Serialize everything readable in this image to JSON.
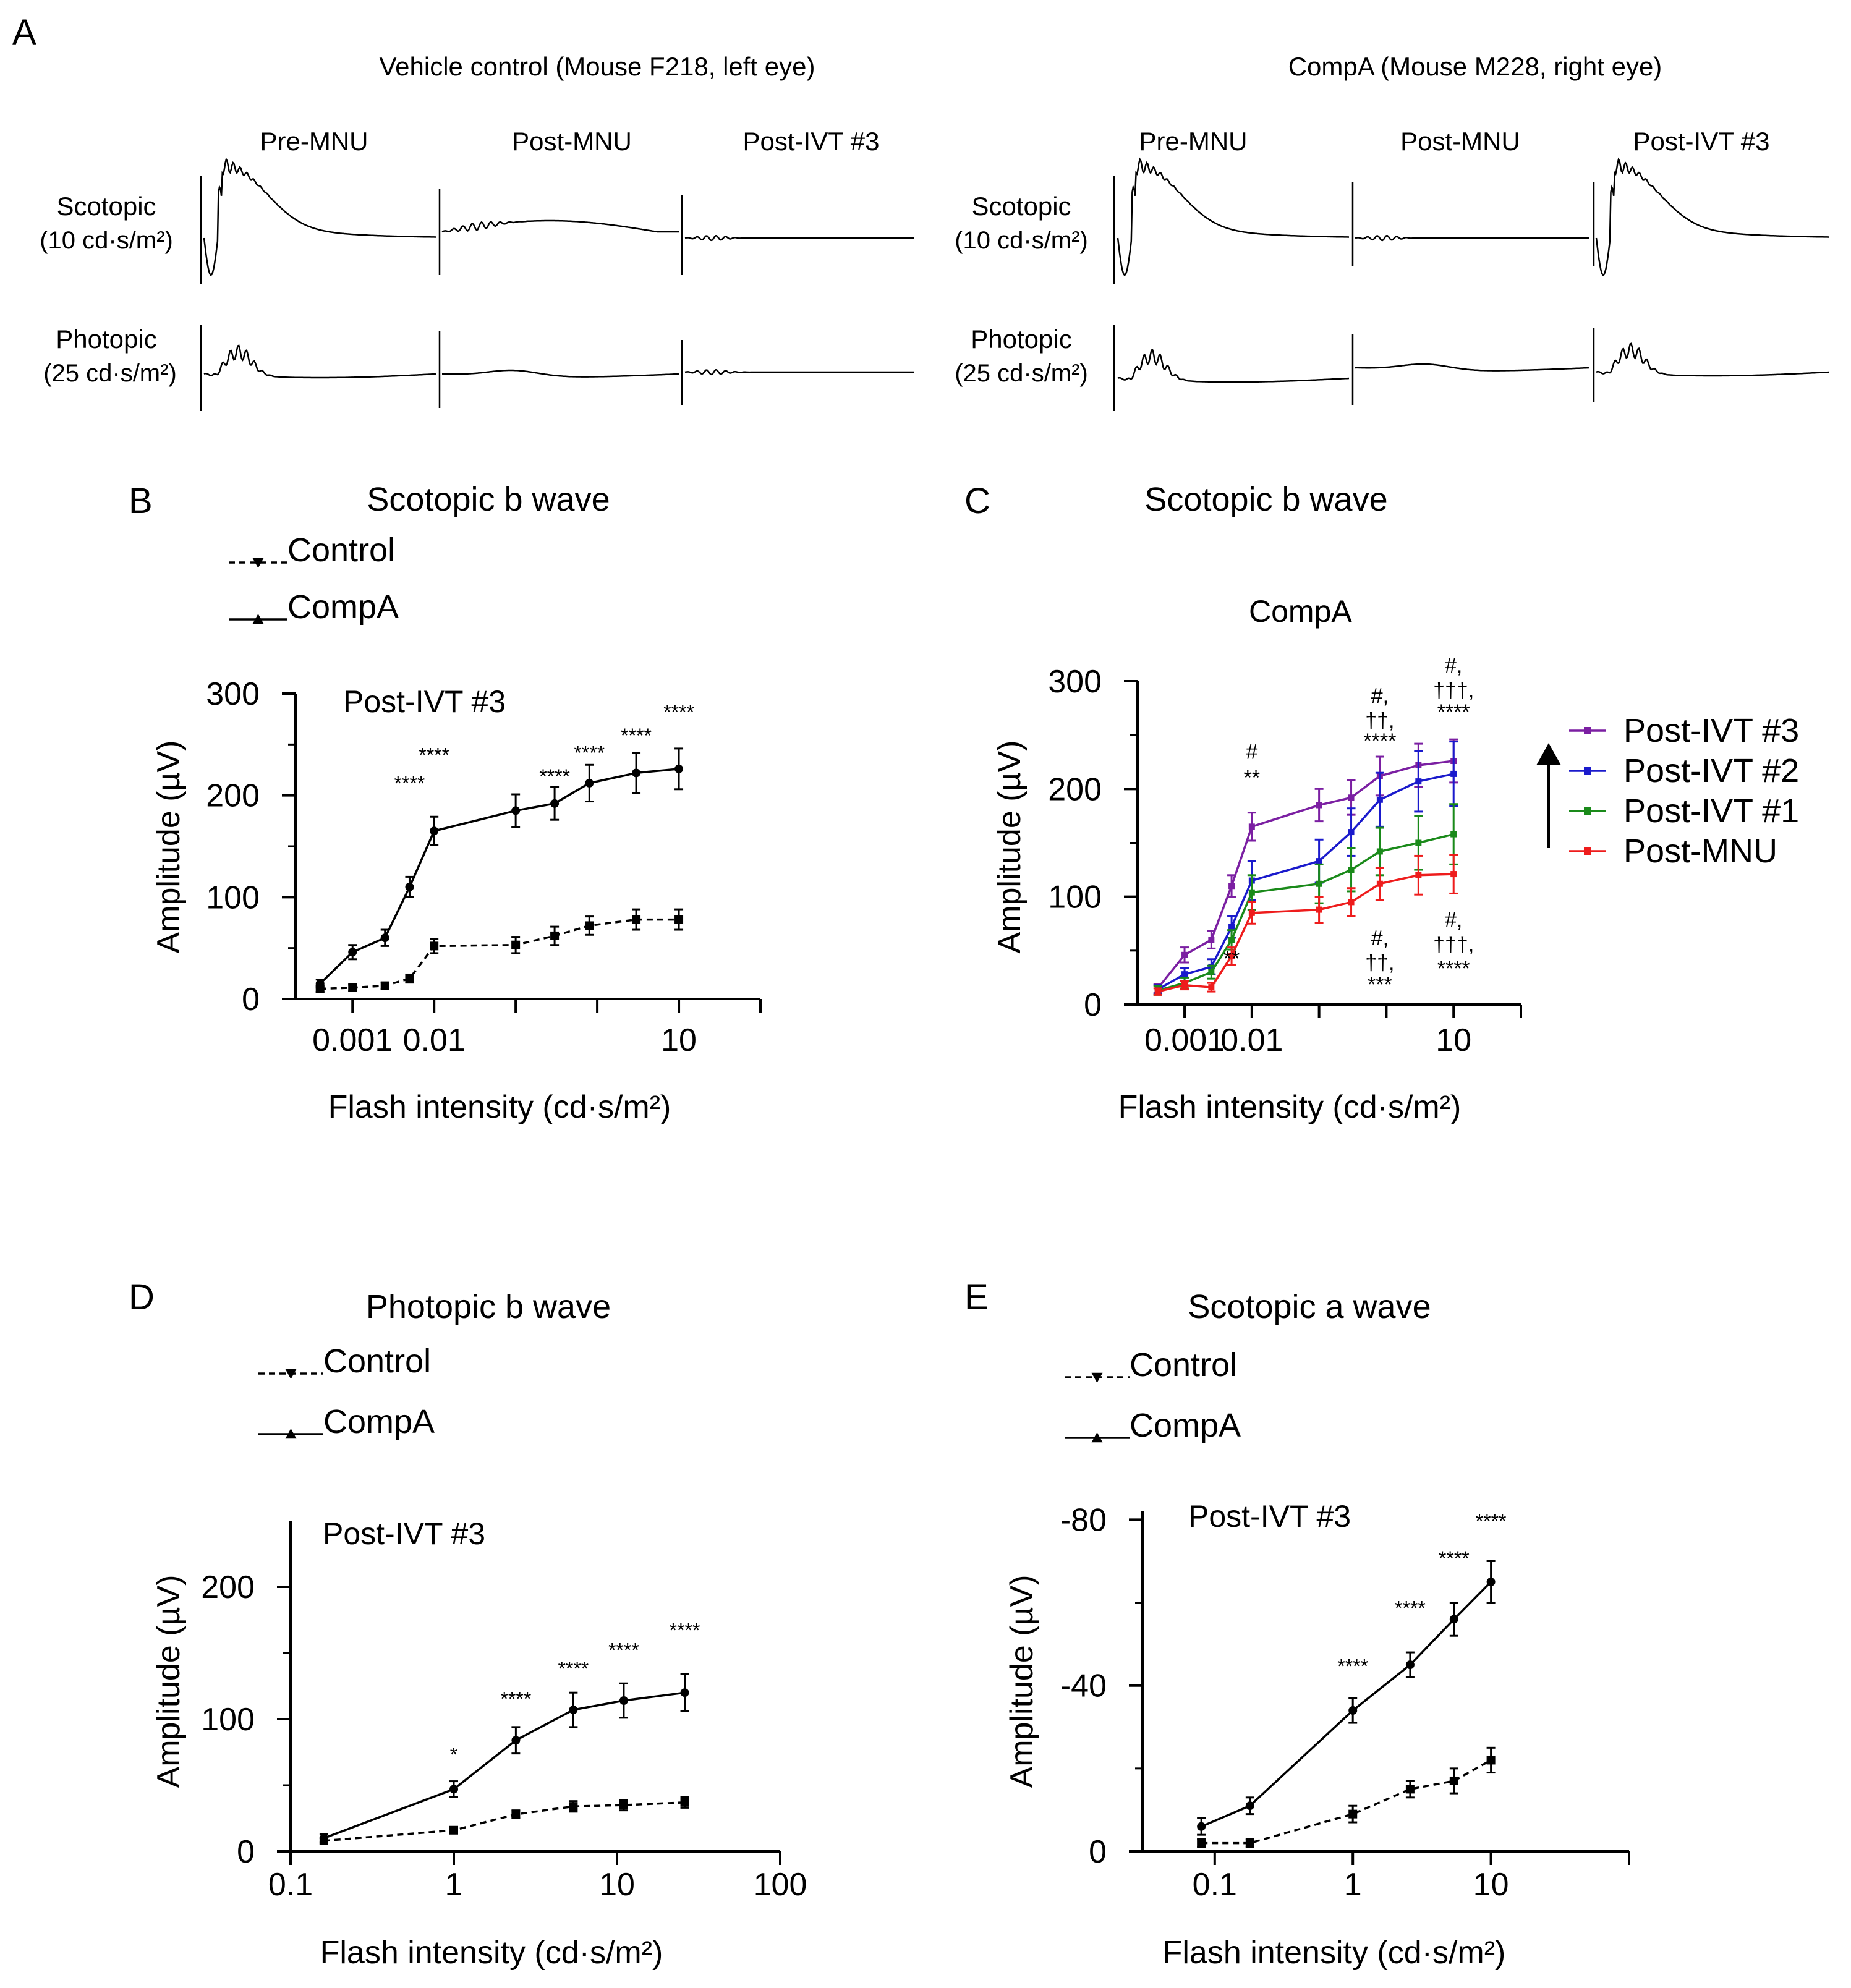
{
  "panel_letters": {
    "a": "A",
    "b": "B",
    "c": "C",
    "d": "D",
    "e": "E"
  },
  "panel_a": {
    "groups": [
      {
        "title": "Vehicle control (Mouse F218, left eye)"
      },
      {
        "title": "CompA (Mouse M228, right eye)"
      }
    ],
    "columns": [
      "Pre-MNU",
      "Post-MNU",
      "Post-IVT #3"
    ],
    "rows": [
      {
        "line1": "Scotopic",
        "line2": "(10 cd·s/m²)"
      },
      {
        "line1": "Photopic",
        "line2": "(25 cd·s/m²)"
      }
    ]
  },
  "chart_data": [
    {
      "panel": "B",
      "type": "line",
      "title": "Scotopic b wave",
      "subtitle": "Post-IVT #3",
      "xlabel": "Flash intensity (cd·s/m²)",
      "ylabel": "Amplitude (µV)",
      "xscale": "log",
      "xlim": [
        0.0002,
        100
      ],
      "ylim": [
        0,
        300
      ],
      "xticks": [
        0.001,
        0.01,
        10
      ],
      "xtick_labels": [
        "0.001",
        "0.01",
        "10"
      ],
      "yticks": [
        0,
        100,
        200,
        300
      ],
      "ytick_labels": [
        "0",
        "100",
        "200",
        "300"
      ],
      "x": [
        0.0004,
        0.001,
        0.0025,
        0.005,
        0.01,
        0.1,
        0.3,
        0.8,
        3,
        10
      ],
      "series": [
        {
          "name": "Control",
          "style": "dashed",
          "marker": "square",
          "values": [
            10,
            11,
            13,
            20,
            52,
            53,
            62,
            72,
            78,
            78
          ],
          "errors": [
            3,
            3,
            3,
            4,
            7,
            8,
            9,
            9,
            10,
            10
          ]
        },
        {
          "name": "CompA",
          "style": "solid",
          "marker": "circle",
          "values": [
            15,
            46,
            60,
            110,
            165,
            185,
            192,
            212,
            222,
            226
          ],
          "errors": [
            4,
            7,
            8,
            10,
            14,
            16,
            16,
            18,
            20,
            20
          ]
        }
      ],
      "annotations": [
        {
          "x": 0.005,
          "y": 205,
          "text": "****"
        },
        {
          "x": 0.01,
          "y": 233,
          "text": "****"
        },
        {
          "x": 0.3,
          "y": 212,
          "text": "****"
        },
        {
          "x": 0.8,
          "y": 235,
          "text": "****"
        },
        {
          "x": 3,
          "y": 252,
          "text": "****"
        },
        {
          "x": 10,
          "y": 275,
          "text": "****"
        }
      ],
      "legend": [
        {
          "label": "Control",
          "style": "dashed",
          "marker": "triangle-down"
        },
        {
          "label": "CompA",
          "style": "solid",
          "marker": "triangle-up"
        }
      ]
    },
    {
      "panel": "C",
      "type": "line",
      "title": "Scotopic b wave",
      "subtitle": "CompA",
      "xlabel": "Flash intensity (cd·s/m²)",
      "ylabel": "Amplitude (µV)",
      "xscale": "log",
      "xlim": [
        0.0002,
        100
      ],
      "ylim": [
        0,
        300
      ],
      "xticks": [
        0.001,
        0.01,
        10
      ],
      "xtick_labels": [
        "0.001",
        "0.01",
        "10"
      ],
      "yticks": [
        0,
        100,
        200,
        300
      ],
      "ytick_labels": [
        "0",
        "100",
        "200",
        "300"
      ],
      "x": [
        0.0004,
        0.001,
        0.0025,
        0.005,
        0.01,
        0.1,
        0.3,
        0.8,
        3,
        10
      ],
      "series": [
        {
          "name": "Post-IVT #3",
          "color": "#7b1fa2",
          "values": [
            15,
            46,
            60,
            110,
            165,
            185,
            192,
            212,
            222,
            226
          ],
          "errors": [
            4,
            7,
            8,
            10,
            13,
            15,
            16,
            18,
            20,
            20
          ]
        },
        {
          "name": "Post-IVT #2",
          "color": "#1a1acc",
          "values": [
            14,
            28,
            35,
            72,
            115,
            133,
            160,
            190,
            207,
            214
          ],
          "errors": [
            4,
            6,
            7,
            10,
            18,
            20,
            22,
            25,
            28,
            30
          ]
        },
        {
          "name": "Post-IVT #1",
          "color": "#1a8a1a",
          "values": [
            13,
            20,
            30,
            60,
            104,
            112,
            125,
            142,
            150,
            158
          ],
          "errors": [
            4,
            5,
            6,
            9,
            16,
            18,
            20,
            22,
            25,
            28
          ]
        },
        {
          "name": "Post-MNU",
          "color": "#ee1c1c",
          "values": [
            12,
            18,
            16,
            45,
            85,
            88,
            95,
            112,
            120,
            121
          ],
          "errors": [
            3,
            4,
            4,
            8,
            10,
            12,
            13,
            15,
            18,
            18
          ]
        }
      ],
      "annotations": [
        {
          "x": 0.01,
          "y": 228,
          "text": "#"
        },
        {
          "x": 0.01,
          "y": 204,
          "text": "**"
        },
        {
          "x": 0.005,
          "y": 36,
          "text": "**"
        },
        {
          "x": 0.8,
          "y": 280,
          "text": "#,"
        },
        {
          "x": 0.8,
          "y": 257,
          "text": "††,"
        },
        {
          "x": 0.8,
          "y": 238,
          "text": "****"
        },
        {
          "x": 10,
          "y": 308,
          "text": "#,"
        },
        {
          "x": 10,
          "y": 285,
          "text": "†††,"
        },
        {
          "x": 10,
          "y": 265,
          "text": "****"
        },
        {
          "x": 0.8,
          "y": 55,
          "text": "#,"
        },
        {
          "x": 0.8,
          "y": 32,
          "text": "††,"
        },
        {
          "x": 0.8,
          "y": 12,
          "text": "***"
        },
        {
          "x": 10,
          "y": 72,
          "text": "#,"
        },
        {
          "x": 10,
          "y": 49,
          "text": "†††,"
        },
        {
          "x": 10,
          "y": 27,
          "text": "****"
        }
      ],
      "legend": [
        {
          "label": "Post-IVT #3",
          "color": "#7b1fa2"
        },
        {
          "label": "Post-IVT #2",
          "color": "#1a1acc"
        },
        {
          "label": "Post-IVT #1",
          "color": "#1a8a1a"
        },
        {
          "label": "Post-MNU",
          "color": "#ee1c1c"
        }
      ]
    },
    {
      "panel": "D",
      "type": "line",
      "title": "Photopic b wave",
      "subtitle": "Post-IVT #3",
      "xlabel": "Flash intensity (cd·s/m²)",
      "ylabel": "Amplitude (µV)",
      "xscale": "log",
      "xlim": [
        0.1,
        100
      ],
      "ylim": [
        0,
        250
      ],
      "xticks": [
        0.1,
        1,
        10,
        100
      ],
      "xtick_labels": [
        "0.1",
        "1",
        "10",
        "100"
      ],
      "yticks": [
        0,
        100,
        200
      ],
      "ytick_labels": [
        "0",
        "100",
        "200"
      ],
      "x": [
        0.16,
        1,
        2.4,
        5.4,
        11,
        26
      ],
      "series": [
        {
          "name": "Control",
          "style": "dashed",
          "marker": "square",
          "values": [
            8,
            16,
            28,
            34,
            35,
            37
          ],
          "errors": [
            2,
            2,
            3,
            4,
            4,
            4
          ]
        },
        {
          "name": "CompA",
          "style": "solid",
          "marker": "circle",
          "values": [
            10,
            47,
            84,
            107,
            114,
            120
          ],
          "errors": [
            3,
            6,
            10,
            13,
            13,
            14
          ]
        }
      ],
      "annotations": [
        {
          "x": 1,
          "y": 68,
          "text": "*"
        },
        {
          "x": 2.4,
          "y": 110,
          "text": "****"
        },
        {
          "x": 5.4,
          "y": 133,
          "text": "****"
        },
        {
          "x": 11,
          "y": 147,
          "text": "****"
        },
        {
          "x": 26,
          "y": 162,
          "text": "****"
        }
      ],
      "legend": [
        {
          "label": "Control",
          "style": "dashed",
          "marker": "triangle-down"
        },
        {
          "label": "CompA",
          "style": "solid",
          "marker": "triangle-up"
        }
      ]
    },
    {
      "panel": "E",
      "type": "line",
      "title": "Scotopic a wave",
      "subtitle": "Post-IVT #3",
      "xlabel": "Flash intensity (cd·s/m²)",
      "ylabel": "Amplitude (µV)",
      "xscale": "log",
      "xlim": [
        0.03,
        100
      ],
      "ylim": [
        0,
        -82
      ],
      "xticks": [
        0.1,
        1,
        10
      ],
      "xtick_labels": [
        "0.1",
        "1",
        "10"
      ],
      "yticks": [
        0,
        -40,
        -80
      ],
      "ytick_labels": [
        "0",
        "-40",
        "-80"
      ],
      "x": [
        0.08,
        0.18,
        1,
        2.6,
        5.4,
        10
      ],
      "series": [
        {
          "name": "Control",
          "style": "dashed",
          "marker": "square",
          "values": [
            -2,
            -2,
            -9,
            -15,
            -17,
            -22
          ],
          "errors": [
            1,
            1,
            2,
            2,
            3,
            3
          ]
        },
        {
          "name": "CompA",
          "style": "solid",
          "marker": "circle",
          "values": [
            -6,
            -11,
            -34,
            -45,
            -56,
            -65
          ],
          "errors": [
            2,
            2,
            3,
            3,
            4,
            5
          ]
        }
      ],
      "annotations": [
        {
          "x": 1,
          "y": -43,
          "text": "****"
        },
        {
          "x": 2.6,
          "y": -57,
          "text": "****"
        },
        {
          "x": 5.4,
          "y": -69,
          "text": "****"
        },
        {
          "x": 10,
          "y": -78,
          "text": "****"
        }
      ],
      "legend": [
        {
          "label": "Control",
          "style": "dashed",
          "marker": "triangle-down"
        },
        {
          "label": "CompA",
          "style": "solid",
          "marker": "triangle-up"
        }
      ]
    }
  ]
}
